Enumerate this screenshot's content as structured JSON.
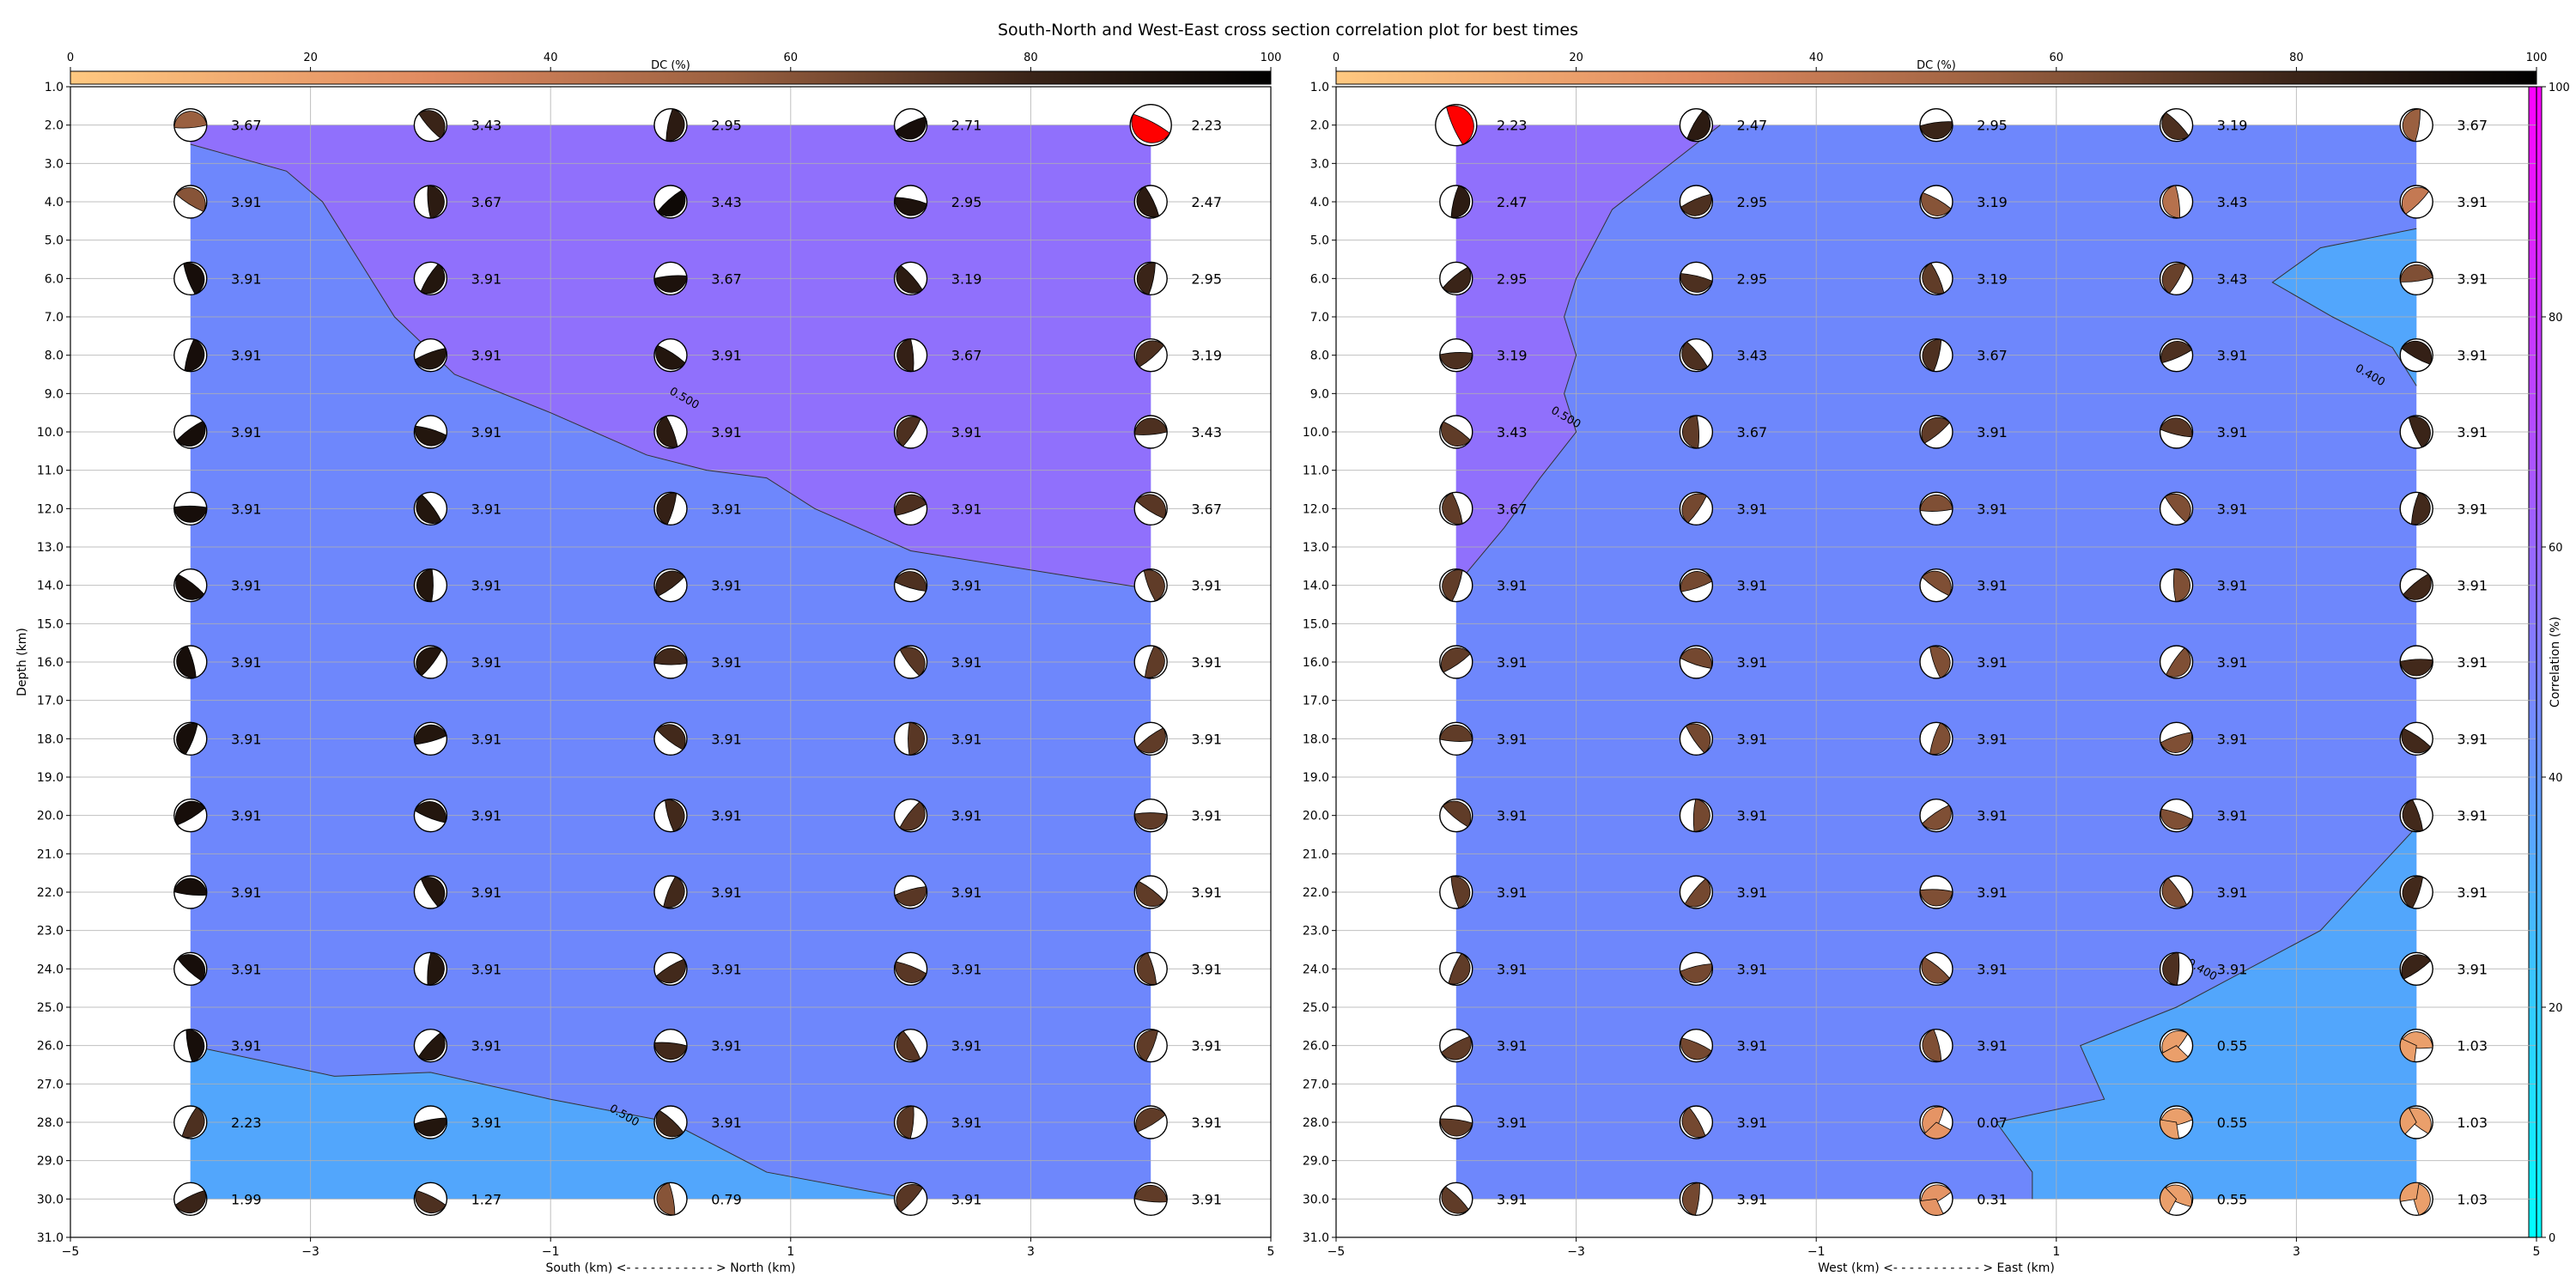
{
  "title": "South-North and West-East cross section correlation plot for best times",
  "colors": {
    "dc_low": "#ffc880",
    "dc_mid": "#a46640",
    "dc_high": "#000000",
    "corr_low": "#00ffff",
    "corr_high": "#ff00ff",
    "region_purple": "#9070fc",
    "region_blue": "#6e87fc",
    "region_lightblue": "#52a6fc",
    "best_red": "#ff0000",
    "grid": "#b0b0b0"
  },
  "dc_colorbar": {
    "label": "DC (%)",
    "ticks": [
      0,
      20,
      40,
      60,
      80,
      100
    ]
  },
  "corr_colorbar": {
    "label": "Correlation (%)",
    "ticks": [
      0,
      20,
      40,
      60,
      80,
      100
    ]
  },
  "chart_data": [
    {
      "type": "heatmap",
      "xlabel": "South (km) <- - - - - - - - - - - > North (km)",
      "ylabel": "Depth (km)",
      "xlim": [
        -5,
        5
      ],
      "ylim": [
        31,
        1
      ],
      "x_ticks": [
        "−5",
        "−3",
        "−1",
        "1",
        "3",
        "5"
      ],
      "y_ticks": [
        "1.0",
        "2.0",
        "3.0",
        "4.0",
        "5.0",
        "6.0",
        "7.0",
        "8.0",
        "9.0",
        "10.0",
        "11.0",
        "12.0",
        "13.0",
        "14.0",
        "15.0",
        "16.0",
        "17.0",
        "18.0",
        "19.0",
        "20.0",
        "21.0",
        "22.0",
        "23.0",
        "24.0",
        "25.0",
        "26.0",
        "27.0",
        "28.0",
        "29.0",
        "30.0",
        "31.0"
      ],
      "x_positions": [
        -4,
        -2,
        0,
        2,
        4
      ],
      "depths": [
        2,
        4,
        6,
        8,
        10,
        12,
        14,
        16,
        18,
        20,
        22,
        24,
        26,
        28,
        30
      ],
      "contours": [
        {
          "label": "0.500",
          "label_at": [
            0.1,
            9.2
          ],
          "points": [
            [
              -4,
              2.5
            ],
            [
              -3.2,
              3.2
            ],
            [
              -2.9,
              4.0
            ],
            [
              -2.6,
              5.5
            ],
            [
              -2.3,
              7.0
            ],
            [
              -1.8,
              8.5
            ],
            [
              -1.0,
              9.5
            ],
            [
              -0.2,
              10.6
            ],
            [
              0.3,
              11.0
            ],
            [
              0.8,
              11.2
            ],
            [
              1.2,
              12.0
            ],
            [
              2.0,
              13.1
            ],
            [
              4.0,
              14.1
            ]
          ]
        },
        {
          "label": "0.500",
          "label_at": [
            -0.4,
            27.9
          ],
          "points": [
            [
              -4,
              26.0
            ],
            [
              -2.8,
              26.8
            ],
            [
              -2.0,
              26.7
            ],
            [
              -1.0,
              27.4
            ],
            [
              0,
              28.0
            ],
            [
              0.8,
              29.3
            ],
            [
              2.0,
              30.0
            ]
          ]
        }
      ],
      "grid": [
        [
          {
            "c": "3.67",
            "dc": 55
          },
          {
            "c": "3.43",
            "dc": 80
          },
          {
            "c": "2.95",
            "dc": 85
          },
          {
            "c": "2.71",
            "dc": 92
          },
          {
            "c": "2.23",
            "best": true
          }
        ],
        [
          {
            "c": "3.91",
            "dc": 60
          },
          {
            "c": "3.67",
            "dc": 85
          },
          {
            "c": "3.43",
            "dc": 95
          },
          {
            "c": "2.95",
            "dc": 90
          },
          {
            "c": "2.47",
            "dc": 85
          }
        ],
        [
          {
            "c": "3.91",
            "dc": 92
          },
          {
            "c": "3.91",
            "dc": 88
          },
          {
            "c": "3.67",
            "dc": 90
          },
          {
            "c": "3.19",
            "dc": 85
          },
          {
            "c": "2.95",
            "dc": 80
          }
        ],
        [
          {
            "c": "3.91",
            "dc": 92
          },
          {
            "c": "3.91",
            "dc": 88
          },
          {
            "c": "3.91",
            "dc": 88
          },
          {
            "c": "3.67",
            "dc": 82
          },
          {
            "c": "3.19",
            "dc": 75
          }
        ],
        [
          {
            "c": "3.91",
            "dc": 92
          },
          {
            "c": "3.91",
            "dc": 88
          },
          {
            "c": "3.91",
            "dc": 85
          },
          {
            "c": "3.91",
            "dc": 75
          },
          {
            "c": "3.43",
            "dc": 75
          }
        ],
        [
          {
            "c": "3.91",
            "dc": 92
          },
          {
            "c": "3.91",
            "dc": 88
          },
          {
            "c": "3.91",
            "dc": 82
          },
          {
            "c": "3.91",
            "dc": 75
          },
          {
            "c": "3.67",
            "dc": 72
          }
        ],
        [
          {
            "c": "3.91",
            "dc": 92
          },
          {
            "c": "3.91",
            "dc": 88
          },
          {
            "c": "3.91",
            "dc": 80
          },
          {
            "c": "3.91",
            "dc": 75
          },
          {
            "c": "3.91",
            "dc": 70
          }
        ],
        [
          {
            "c": "3.91",
            "dc": 92
          },
          {
            "c": "3.91",
            "dc": 88
          },
          {
            "c": "3.91",
            "dc": 78
          },
          {
            "c": "3.91",
            "dc": 72
          },
          {
            "c": "3.91",
            "dc": 70
          }
        ],
        [
          {
            "c": "3.91",
            "dc": 92
          },
          {
            "c": "3.91",
            "dc": 88
          },
          {
            "c": "3.91",
            "dc": 78
          },
          {
            "c": "3.91",
            "dc": 72
          },
          {
            "c": "3.91",
            "dc": 70
          }
        ],
        [
          {
            "c": "3.91",
            "dc": 92
          },
          {
            "c": "3.91",
            "dc": 88
          },
          {
            "c": "3.91",
            "dc": 78
          },
          {
            "c": "3.91",
            "dc": 72
          },
          {
            "c": "3.91",
            "dc": 70
          }
        ],
        [
          {
            "c": "3.91",
            "dc": 92
          },
          {
            "c": "3.91",
            "dc": 88
          },
          {
            "c": "3.91",
            "dc": 78
          },
          {
            "c": "3.91",
            "dc": 72
          },
          {
            "c": "3.91",
            "dc": 70
          }
        ],
        [
          {
            "c": "3.91",
            "dc": 92
          },
          {
            "c": "3.91",
            "dc": 88
          },
          {
            "c": "3.91",
            "dc": 78
          },
          {
            "c": "3.91",
            "dc": 72
          },
          {
            "c": "3.91",
            "dc": 70
          }
        ],
        [
          {
            "c": "3.91",
            "dc": 92
          },
          {
            "c": "3.91",
            "dc": 88
          },
          {
            "c": "3.91",
            "dc": 78
          },
          {
            "c": "3.91",
            "dc": 72
          },
          {
            "c": "3.91",
            "dc": 70
          }
        ],
        [
          {
            "c": "2.23",
            "dc": 75
          },
          {
            "c": "3.91",
            "dc": 88
          },
          {
            "c": "3.91",
            "dc": 78
          },
          {
            "c": "3.91",
            "dc": 72
          },
          {
            "c": "3.91",
            "dc": 70
          }
        ],
        [
          {
            "c": "1.99",
            "dc": 80
          },
          {
            "c": "1.27",
            "dc": 75
          },
          {
            "c": "0.79",
            "dc": 60
          },
          {
            "c": "3.91",
            "dc": 72
          },
          {
            "c": "3.91",
            "dc": 70
          }
        ]
      ]
    },
    {
      "type": "heatmap",
      "xlabel": "West (km) <- - - - - - - - - - - > East (km)",
      "ylabel": "",
      "xlim": [
        -5,
        5
      ],
      "ylim": [
        31,
        1
      ],
      "x_ticks": [
        "−5",
        "−3",
        "−1",
        "1",
        "3",
        "5"
      ],
      "y_ticks": [
        "1.0",
        "2.0",
        "3.0",
        "4.0",
        "5.0",
        "6.0",
        "7.0",
        "8.0",
        "9.0",
        "10.0",
        "11.0",
        "12.0",
        "13.0",
        "14.0",
        "15.0",
        "16.0",
        "17.0",
        "18.0",
        "19.0",
        "20.0",
        "21.0",
        "22.0",
        "23.0",
        "24.0",
        "25.0",
        "26.0",
        "27.0",
        "28.0",
        "29.0",
        "30.0",
        "31.0"
      ],
      "x_positions": [
        -4,
        -2,
        0,
        2,
        4
      ],
      "depths": [
        2,
        4,
        6,
        8,
        10,
        12,
        14,
        16,
        18,
        20,
        22,
        24,
        26,
        28,
        30
      ],
      "contours": [
        {
          "label": "0.500",
          "label_at": [
            -3.1,
            9.7
          ],
          "points": [
            [
              -1.8,
              2.0
            ],
            [
              -2.7,
              4.2
            ],
            [
              -3.0,
              6.0
            ],
            [
              -3.1,
              7.0
            ],
            [
              -3.0,
              8.0
            ],
            [
              -3.1,
              9.0
            ],
            [
              -3.0,
              10.0
            ],
            [
              -3.3,
              11.2
            ],
            [
              -3.6,
              12.5
            ],
            [
              -4.0,
              14.0
            ]
          ]
        },
        {
          "label": "0.400",
          "label_at": [
            3.6,
            8.6
          ],
          "points": [
            [
              4.0,
              4.7
            ],
            [
              3.2,
              5.2
            ],
            [
              2.8,
              6.1
            ],
            [
              3.3,
              7.0
            ],
            [
              3.8,
              7.8
            ],
            [
              4.0,
              8.8
            ]
          ]
        },
        {
          "label": "0.400",
          "label_at": [
            2.2,
            24.1
          ],
          "points": [
            [
              4.0,
              20.3
            ],
            [
              3.2,
              23.0
            ],
            [
              2.0,
              25.0
            ],
            [
              1.2,
              26.0
            ],
            [
              1.4,
              27.4
            ],
            [
              0.5,
              28.0
            ],
            [
              0.8,
              29.3
            ],
            [
              0.8,
              30.0
            ]
          ]
        }
      ],
      "grid": [
        [
          {
            "c": "2.23",
            "best": true
          },
          {
            "c": "2.47",
            "dc": 85
          },
          {
            "c": "2.95",
            "dc": 80
          },
          {
            "c": "3.19",
            "dc": 75
          },
          {
            "c": "3.67",
            "dc": 55
          }
        ],
        [
          {
            "c": "2.47",
            "dc": 85
          },
          {
            "c": "2.95",
            "dc": 75
          },
          {
            "c": "3.19",
            "dc": 60
          },
          {
            "c": "3.43",
            "dc": 45
          },
          {
            "c": "3.91",
            "dc": 40
          }
        ],
        [
          {
            "c": "2.95",
            "dc": 80
          },
          {
            "c": "2.95",
            "dc": 75
          },
          {
            "c": "3.19",
            "dc": 70
          },
          {
            "c": "3.43",
            "dc": 68
          },
          {
            "c": "3.91",
            "dc": 62
          }
        ],
        [
          {
            "c": "3.19",
            "dc": 75
          },
          {
            "c": "3.43",
            "dc": 75
          },
          {
            "c": "3.67",
            "dc": 75
          },
          {
            "c": "3.91",
            "dc": 75
          },
          {
            "c": "3.91",
            "dc": 82
          }
        ],
        [
          {
            "c": "3.43",
            "dc": 70
          },
          {
            "c": "3.67",
            "dc": 70
          },
          {
            "c": "3.91",
            "dc": 70
          },
          {
            "c": "3.91",
            "dc": 72
          },
          {
            "c": "3.91",
            "dc": 80
          }
        ],
        [
          {
            "c": "3.67",
            "dc": 70
          },
          {
            "c": "3.91",
            "dc": 65
          },
          {
            "c": "3.91",
            "dc": 62
          },
          {
            "c": "3.91",
            "dc": 62
          },
          {
            "c": "3.91",
            "dc": 78
          }
        ],
        [
          {
            "c": "3.91",
            "dc": 70
          },
          {
            "c": "3.91",
            "dc": 65
          },
          {
            "c": "3.91",
            "dc": 62
          },
          {
            "c": "3.91",
            "dc": 62
          },
          {
            "c": "3.91",
            "dc": 78
          }
        ],
        [
          {
            "c": "3.91",
            "dc": 70
          },
          {
            "c": "3.91",
            "dc": 65
          },
          {
            "c": "3.91",
            "dc": 62
          },
          {
            "c": "3.91",
            "dc": 62
          },
          {
            "c": "3.91",
            "dc": 78
          }
        ],
        [
          {
            "c": "3.91",
            "dc": 70
          },
          {
            "c": "3.91",
            "dc": 65
          },
          {
            "c": "3.91",
            "dc": 62
          },
          {
            "c": "3.91",
            "dc": 62
          },
          {
            "c": "3.91",
            "dc": 78
          }
        ],
        [
          {
            "c": "3.91",
            "dc": 70
          },
          {
            "c": "3.91",
            "dc": 65
          },
          {
            "c": "3.91",
            "dc": 62
          },
          {
            "c": "3.91",
            "dc": 62
          },
          {
            "c": "3.91",
            "dc": 78
          }
        ],
        [
          {
            "c": "3.91",
            "dc": 70
          },
          {
            "c": "3.91",
            "dc": 65
          },
          {
            "c": "3.91",
            "dc": 62
          },
          {
            "c": "3.91",
            "dc": 62
          },
          {
            "c": "3.91",
            "dc": 78
          }
        ],
        [
          {
            "c": "3.91",
            "dc": 70
          },
          {
            "c": "3.91",
            "dc": 65
          },
          {
            "c": "3.91",
            "dc": 62
          },
          {
            "c": "3.91",
            "dc": 75
          },
          {
            "c": "3.91",
            "dc": 80
          }
        ],
        [
          {
            "c": "3.91",
            "dc": 70
          },
          {
            "c": "3.91",
            "dc": 65
          },
          {
            "c": "3.91",
            "dc": 62
          },
          {
            "c": "0.55",
            "dc": 20
          },
          {
            "c": "1.03",
            "dc": 20
          }
        ],
        [
          {
            "c": "3.91",
            "dc": 70
          },
          {
            "c": "3.91",
            "dc": 65
          },
          {
            "c": "0.07",
            "dc": 25
          },
          {
            "c": "0.55",
            "dc": 20
          },
          {
            "c": "1.03",
            "dc": 20
          }
        ],
        [
          {
            "c": "3.91",
            "dc": 70
          },
          {
            "c": "3.91",
            "dc": 65
          },
          {
            "c": "0.31",
            "dc": 25
          },
          {
            "c": "0.55",
            "dc": 20
          },
          {
            "c": "1.03",
            "dc": 20
          }
        ]
      ]
    }
  ]
}
